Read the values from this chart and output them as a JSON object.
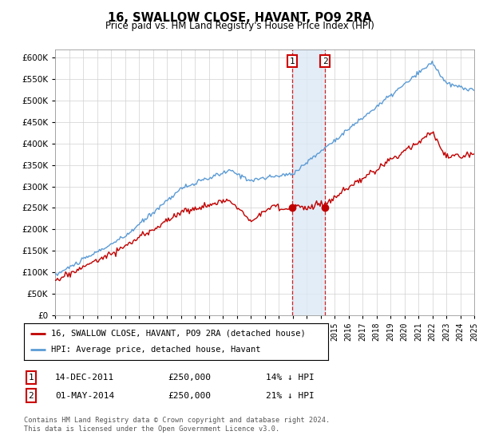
{
  "title": "16, SWALLOW CLOSE, HAVANT, PO9 2RA",
  "subtitle": "Price paid vs. HM Land Registry's House Price Index (HPI)",
  "ylim": [
    0,
    620000
  ],
  "ytick_values": [
    0,
    50000,
    100000,
    150000,
    200000,
    250000,
    300000,
    350000,
    400000,
    450000,
    500000,
    550000,
    600000
  ],
  "x_start_year": 1995,
  "x_end_year": 2025,
  "hpi_color": "#5b9bd5",
  "price_color": "#c00000",
  "dot_color": "#c00000",
  "sale1_year": 2011.958,
  "sale2_year": 2014.333,
  "sale1_price": 250000,
  "sale2_price": 250000,
  "sale1_date": "14-DEC-2011",
  "sale2_date": "01-MAY-2014",
  "sale1_pct": "14%",
  "sale2_pct": "21%",
  "legend_line1": "16, SWALLOW CLOSE, HAVANT, PO9 2RA (detached house)",
  "legend_line2": "HPI: Average price, detached house, Havant",
  "marker_box_color": "#cc0000",
  "shade_color": "#dce9f5",
  "background_color": "#ffffff",
  "grid_color": "#d0d0d0",
  "footnote1": "Contains HM Land Registry data © Crown copyright and database right 2024.",
  "footnote2": "This data is licensed under the Open Government Licence v3.0."
}
